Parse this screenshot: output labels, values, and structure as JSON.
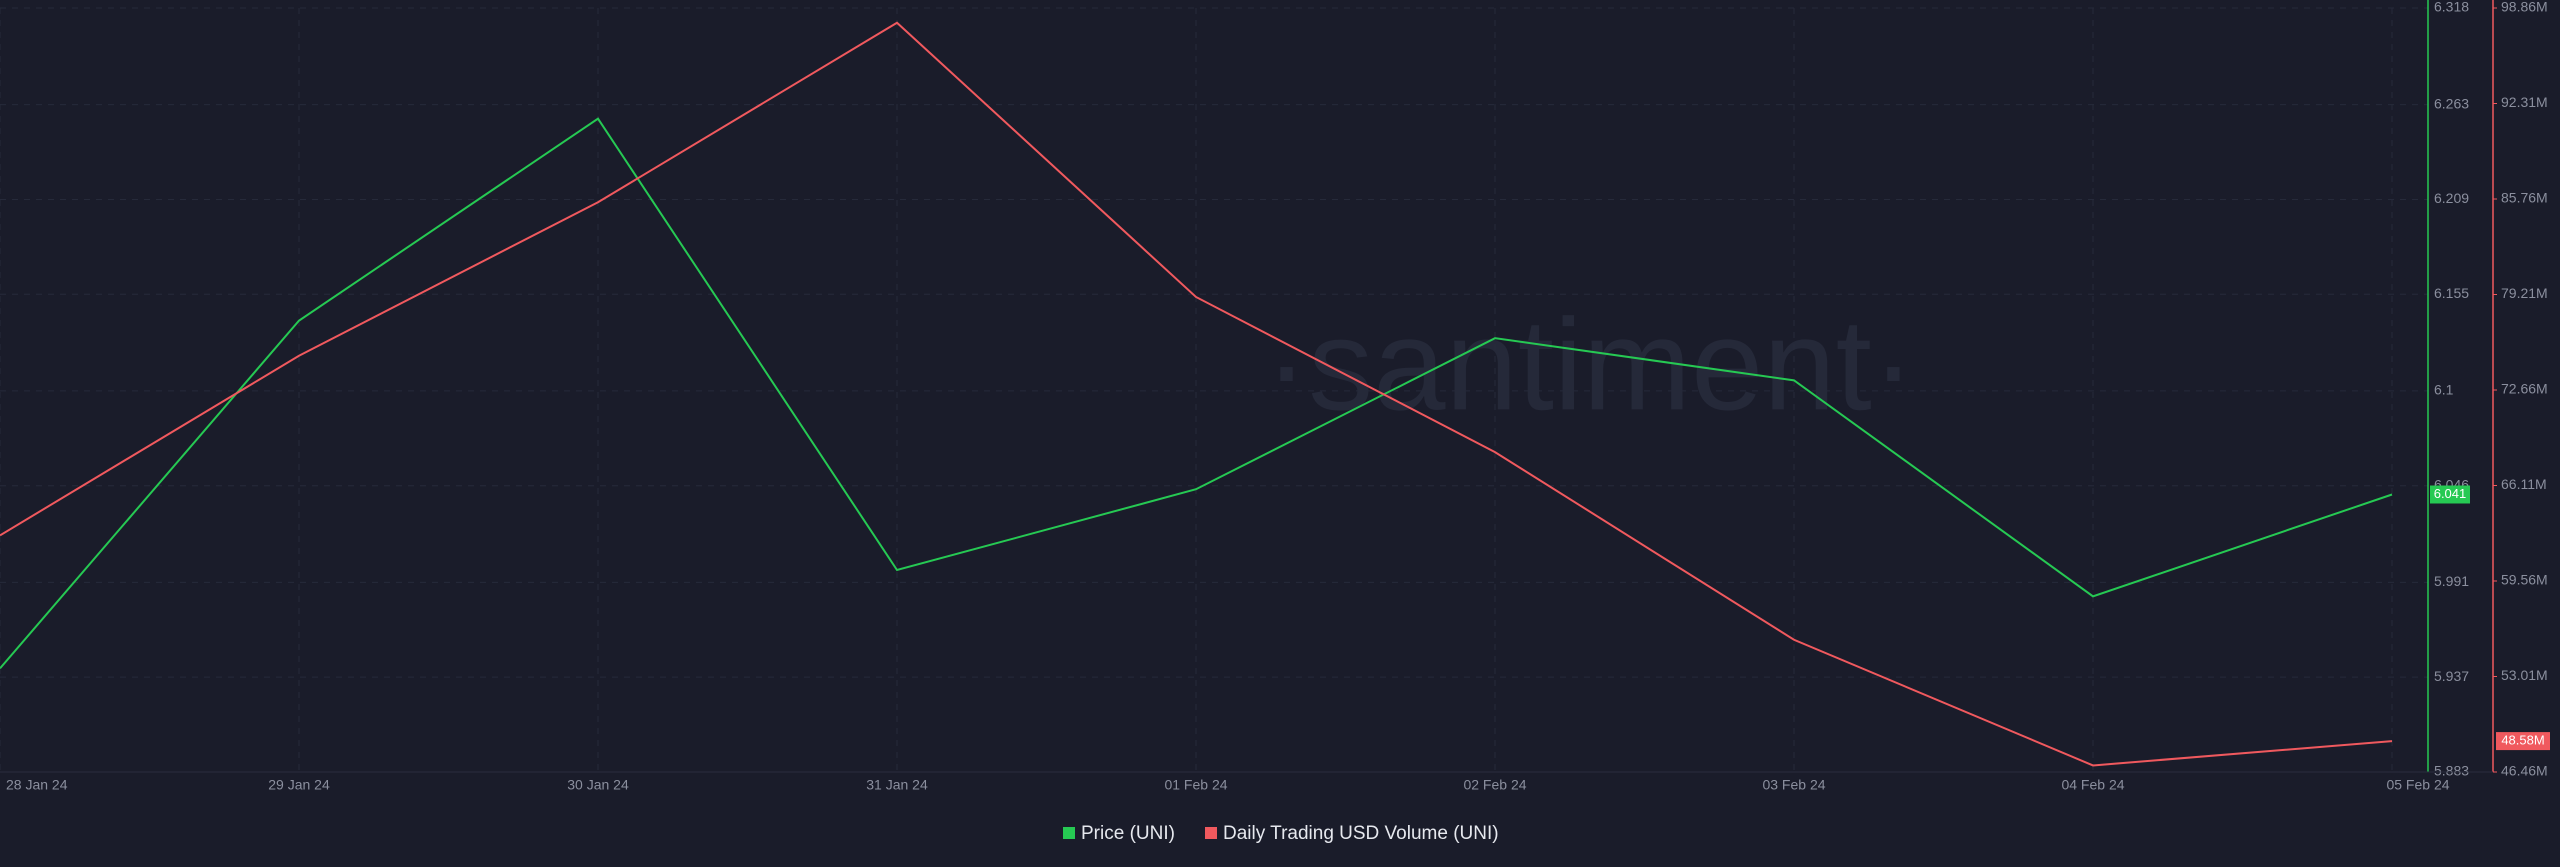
{
  "chart_data": {
    "type": "line",
    "watermark": "·santiment·",
    "categories": [
      "28 Jan 24",
      "29 Jan 24",
      "30 Jan 24",
      "31 Jan 24",
      "01 Feb 24",
      "02 Feb 24",
      "03 Feb 24",
      "04 Feb 24",
      "05 Feb 24"
    ],
    "series": [
      {
        "name": "Price (UNI)",
        "color": "#26c953",
        "values": [
          5.942,
          6.14,
          6.255,
          5.998,
          6.044,
          6.13,
          6.106,
          5.983,
          6.041
        ]
      },
      {
        "name": "Daily Trading USD Volume (UNI)",
        "color": "#f0595e",
        "axis": "y2",
        "values": [
          62690000,
          75010000,
          85540000,
          97850000,
          79040000,
          68400000,
          55530000,
          46910000,
          48580000
        ],
        "value_labels": [
          null,
          null,
          null,
          null,
          null,
          null,
          null,
          null,
          "48.58M"
        ]
      }
    ],
    "ylim": [
      5.883,
      6.318
    ],
    "yticks": [
      6.318,
      6.263,
      6.209,
      6.155,
      6.1,
      6.046,
      5.991,
      5.937,
      5.883
    ],
    "y2lim": [
      46460000,
      98860000
    ],
    "y2ticks": [
      {
        "value": 98860000,
        "label": "98.86M"
      },
      {
        "value": 92310000,
        "label": "92.31M"
      },
      {
        "value": 85760000,
        "label": "85.76M"
      },
      {
        "value": 79210000,
        "label": "79.21M"
      },
      {
        "value": 72660000,
        "label": "72.66M"
      },
      {
        "value": 66110000,
        "label": "66.11M"
      },
      {
        "value": 59560000,
        "label": "59.56M"
      },
      {
        "value": 53010000,
        "label": "53.01M"
      },
      {
        "value": 46460000,
        "label": "46.46M"
      }
    ],
    "grid": true
  }
}
